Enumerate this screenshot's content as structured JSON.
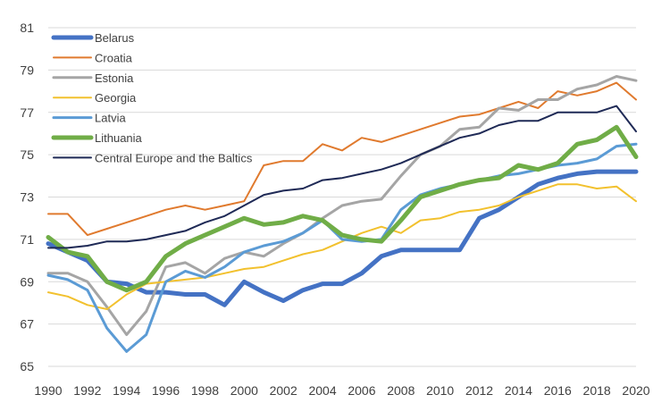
{
  "chart_data": {
    "type": "line",
    "title": "",
    "xlabel": "",
    "ylabel": "",
    "ylim": [
      65,
      81
    ],
    "yticks": [
      65,
      67,
      69,
      71,
      73,
      75,
      77,
      79,
      81
    ],
    "xlim": [
      1990,
      2020
    ],
    "xticks": [
      1990,
      1992,
      1994,
      1996,
      1998,
      2000,
      2002,
      2004,
      2006,
      2008,
      2010,
      2012,
      2014,
      2016,
      2018,
      2020
    ],
    "grid": "horizontal",
    "legend_position": "top-left",
    "x": [
      1990,
      1991,
      1992,
      1993,
      1994,
      1995,
      1996,
      1997,
      1998,
      1999,
      2000,
      2001,
      2002,
      2003,
      2004,
      2005,
      2006,
      2007,
      2008,
      2009,
      2010,
      2011,
      2012,
      2013,
      2014,
      2015,
      2016,
      2017,
      2018,
      2019,
      2020
    ],
    "series": [
      {
        "name": "Belarus",
        "color": "#4472c4",
        "width": 5,
        "values": [
          70.8,
          70.4,
          70.0,
          69.0,
          68.9,
          68.5,
          68.5,
          68.4,
          68.4,
          67.9,
          69.0,
          68.5,
          68.1,
          68.6,
          68.9,
          68.9,
          69.4,
          70.2,
          70.5,
          70.5,
          70.5,
          70.5,
          72.0,
          72.4,
          73.0,
          73.6,
          73.9,
          74.1,
          74.2,
          74.2,
          74.2
        ]
      },
      {
        "name": "Croatia",
        "color": "#e07a2e",
        "width": 2,
        "values": [
          72.2,
          72.2,
          71.2,
          71.5,
          71.8,
          72.1,
          72.4,
          72.6,
          72.4,
          72.6,
          72.8,
          74.5,
          74.7,
          74.7,
          75.5,
          75.2,
          75.8,
          75.6,
          75.9,
          76.2,
          76.5,
          76.8,
          76.9,
          77.2,
          77.5,
          77.2,
          78.0,
          77.8,
          78.0,
          78.4,
          77.6
        ]
      },
      {
        "name": "Estonia",
        "color": "#a5a5a5",
        "width": 3,
        "values": [
          69.4,
          69.4,
          69.0,
          67.8,
          66.5,
          67.6,
          69.7,
          69.9,
          69.4,
          70.1,
          70.4,
          70.2,
          70.8,
          71.3,
          72.0,
          72.6,
          72.8,
          72.9,
          74.0,
          75.0,
          75.4,
          76.2,
          76.3,
          77.2,
          77.1,
          77.6,
          77.6,
          78.1,
          78.3,
          78.7,
          78.5
        ]
      },
      {
        "name": "Georgia",
        "color": "#f2c12e",
        "width": 2,
        "values": [
          68.5,
          68.3,
          67.9,
          67.7,
          68.4,
          68.9,
          69.0,
          69.1,
          69.2,
          69.4,
          69.6,
          69.7,
          70.0,
          70.3,
          70.5,
          70.9,
          71.3,
          71.6,
          71.3,
          71.9,
          72.0,
          72.3,
          72.4,
          72.6,
          73.0,
          73.3,
          73.6,
          73.6,
          73.4,
          73.5,
          72.8
        ]
      },
      {
        "name": "Latvia",
        "color": "#5b9bd5",
        "width": 3,
        "values": [
          69.3,
          69.1,
          68.6,
          66.8,
          65.7,
          66.5,
          69.0,
          69.5,
          69.2,
          69.7,
          70.4,
          70.7,
          70.9,
          71.3,
          71.9,
          71.0,
          70.9,
          71.0,
          72.4,
          73.1,
          73.4,
          73.6,
          73.8,
          74.0,
          74.1,
          74.3,
          74.5,
          74.6,
          74.8,
          75.4,
          75.5
        ]
      },
      {
        "name": "Lithuania",
        "color": "#70ad47",
        "width": 5,
        "values": [
          71.1,
          70.4,
          70.2,
          69.0,
          68.6,
          69.0,
          70.2,
          70.8,
          71.2,
          71.6,
          72.0,
          71.7,
          71.8,
          72.1,
          71.9,
          71.2,
          71.0,
          70.9,
          71.9,
          73.0,
          73.3,
          73.6,
          73.8,
          73.9,
          74.5,
          74.3,
          74.6,
          75.5,
          75.7,
          76.3,
          74.9
        ]
      },
      {
        "name": "Central Europe and the Baltics",
        "color": "#1f2a56",
        "width": 2,
        "values": [
          70.6,
          70.6,
          70.7,
          70.9,
          70.9,
          71.0,
          71.2,
          71.4,
          71.8,
          72.1,
          72.6,
          73.1,
          73.3,
          73.4,
          73.8,
          73.9,
          74.1,
          74.3,
          74.6,
          75.0,
          75.4,
          75.8,
          76.0,
          76.4,
          76.6,
          76.6,
          77.0,
          77.0,
          77.0,
          77.3,
          76.1
        ]
      }
    ]
  }
}
